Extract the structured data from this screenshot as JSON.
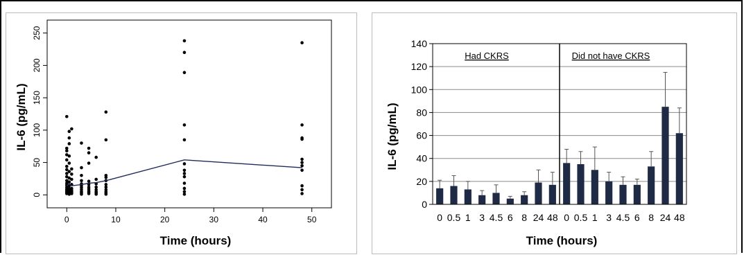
{
  "chart_data": [
    {
      "type": "scatter",
      "xlabel": "Time (hours)",
      "ylabel": "IL-6 (pg/mL)",
      "xlim": [
        -4,
        54
      ],
      "ylim": [
        -20,
        270
      ],
      "xticks": [
        0,
        10,
        20,
        30,
        40,
        50
      ],
      "yticks": [
        0,
        50,
        100,
        150,
        200,
        250
      ],
      "points": [
        [
          0,
          2
        ],
        [
          0,
          4
        ],
        [
          0,
          5
        ],
        [
          0,
          7
        ],
        [
          0,
          9
        ],
        [
          0,
          12
        ],
        [
          0,
          15
        ],
        [
          0,
          18
        ],
        [
          0,
          22
        ],
        [
          0,
          28
        ],
        [
          0,
          33
        ],
        [
          0,
          39
        ],
        [
          0,
          44
        ],
        [
          0,
          54
        ],
        [
          0,
          62
        ],
        [
          0,
          68
        ],
        [
          0,
          72
        ],
        [
          0,
          121
        ],
        [
          0.5,
          1
        ],
        [
          0.5,
          3
        ],
        [
          0.5,
          6
        ],
        [
          0.5,
          8
        ],
        [
          0.5,
          10
        ],
        [
          0.5,
          14
        ],
        [
          0.5,
          20
        ],
        [
          0.5,
          26
        ],
        [
          0.5,
          36
        ],
        [
          0.5,
          49
        ],
        [
          0.5,
          60
        ],
        [
          0.5,
          79
        ],
        [
          0.5,
          88
        ],
        [
          0.5,
          98
        ],
        [
          1,
          2
        ],
        [
          1,
          4
        ],
        [
          1,
          5
        ],
        [
          1,
          7
        ],
        [
          1,
          10
        ],
        [
          1,
          16
        ],
        [
          1,
          24
        ],
        [
          1,
          32
        ],
        [
          1,
          40
        ],
        [
          1,
          102
        ],
        [
          3,
          1
        ],
        [
          3,
          3
        ],
        [
          3,
          5
        ],
        [
          3,
          8
        ],
        [
          3,
          11
        ],
        [
          3,
          14
        ],
        [
          3,
          17
        ],
        [
          3,
          22
        ],
        [
          3,
          30
        ],
        [
          3,
          42
        ],
        [
          3,
          80
        ],
        [
          4.5,
          2
        ],
        [
          4.5,
          4
        ],
        [
          4.5,
          6
        ],
        [
          4.5,
          9
        ],
        [
          4.5,
          12
        ],
        [
          4.5,
          16
        ],
        [
          4.5,
          21
        ],
        [
          4.5,
          49
        ],
        [
          4.5,
          65
        ],
        [
          4.5,
          72
        ],
        [
          6,
          1
        ],
        [
          6,
          3
        ],
        [
          6,
          5
        ],
        [
          6,
          8
        ],
        [
          6,
          12
        ],
        [
          6,
          17
        ],
        [
          6,
          24
        ],
        [
          6,
          58
        ],
        [
          8,
          1
        ],
        [
          8,
          3
        ],
        [
          8,
          5
        ],
        [
          8,
          8
        ],
        [
          8,
          12
        ],
        [
          8,
          16
        ],
        [
          8,
          22
        ],
        [
          8,
          27
        ],
        [
          8,
          30
        ],
        [
          8,
          85
        ],
        [
          8,
          128
        ],
        [
          24,
          1
        ],
        [
          24,
          5
        ],
        [
          24,
          10
        ],
        [
          24,
          18
        ],
        [
          24,
          28
        ],
        [
          24,
          33
        ],
        [
          24,
          38
        ],
        [
          24,
          48
        ],
        [
          24,
          85
        ],
        [
          24,
          108
        ],
        [
          24,
          189
        ],
        [
          24,
          220
        ],
        [
          24,
          238
        ],
        [
          48,
          2
        ],
        [
          48,
          8
        ],
        [
          48,
          14
        ],
        [
          48,
          38
        ],
        [
          48,
          45
        ],
        [
          48,
          50
        ],
        [
          48,
          55
        ],
        [
          48,
          86
        ],
        [
          48,
          88
        ],
        [
          48,
          108
        ],
        [
          48,
          235
        ]
      ],
      "mean_line": [
        [
          0,
          14
        ],
        [
          0.5,
          17
        ],
        [
          1,
          14
        ],
        [
          3,
          16
        ],
        [
          4.5,
          18
        ],
        [
          6,
          19
        ],
        [
          8,
          22
        ],
        [
          24,
          54
        ],
        [
          48,
          42
        ]
      ],
      "grid": false
    },
    {
      "type": "bar",
      "xlabel": "Time (hours)",
      "ylabel": "IL-6 (pg/mL)",
      "ylim": [
        0,
        140
      ],
      "yticks": [
        0,
        20,
        40,
        60,
        80,
        100,
        120,
        140
      ],
      "grid": true,
      "groups": [
        {
          "label": "Had CKRS",
          "categories": [
            "0",
            "0.5",
            "1",
            "3",
            "4.5",
            "6",
            "8",
            "24",
            "48"
          ],
          "values": [
            14,
            16,
            13,
            8,
            10,
            5,
            8,
            19,
            17
          ],
          "errors": [
            7,
            9,
            7,
            4,
            7,
            2,
            3,
            11,
            11
          ]
        },
        {
          "label": "Did not have CKRS",
          "categories": [
            "0",
            "0.5",
            "1",
            "3",
            "4.5",
            "6",
            "8",
            "24",
            "48"
          ],
          "values": [
            36,
            35,
            30,
            20,
            17,
            17,
            33,
            85,
            62
          ],
          "errors": [
            12,
            11,
            20,
            8,
            7,
            5,
            13,
            30,
            22
          ]
        }
      ],
      "bar_color": "#1f2a44"
    }
  ]
}
